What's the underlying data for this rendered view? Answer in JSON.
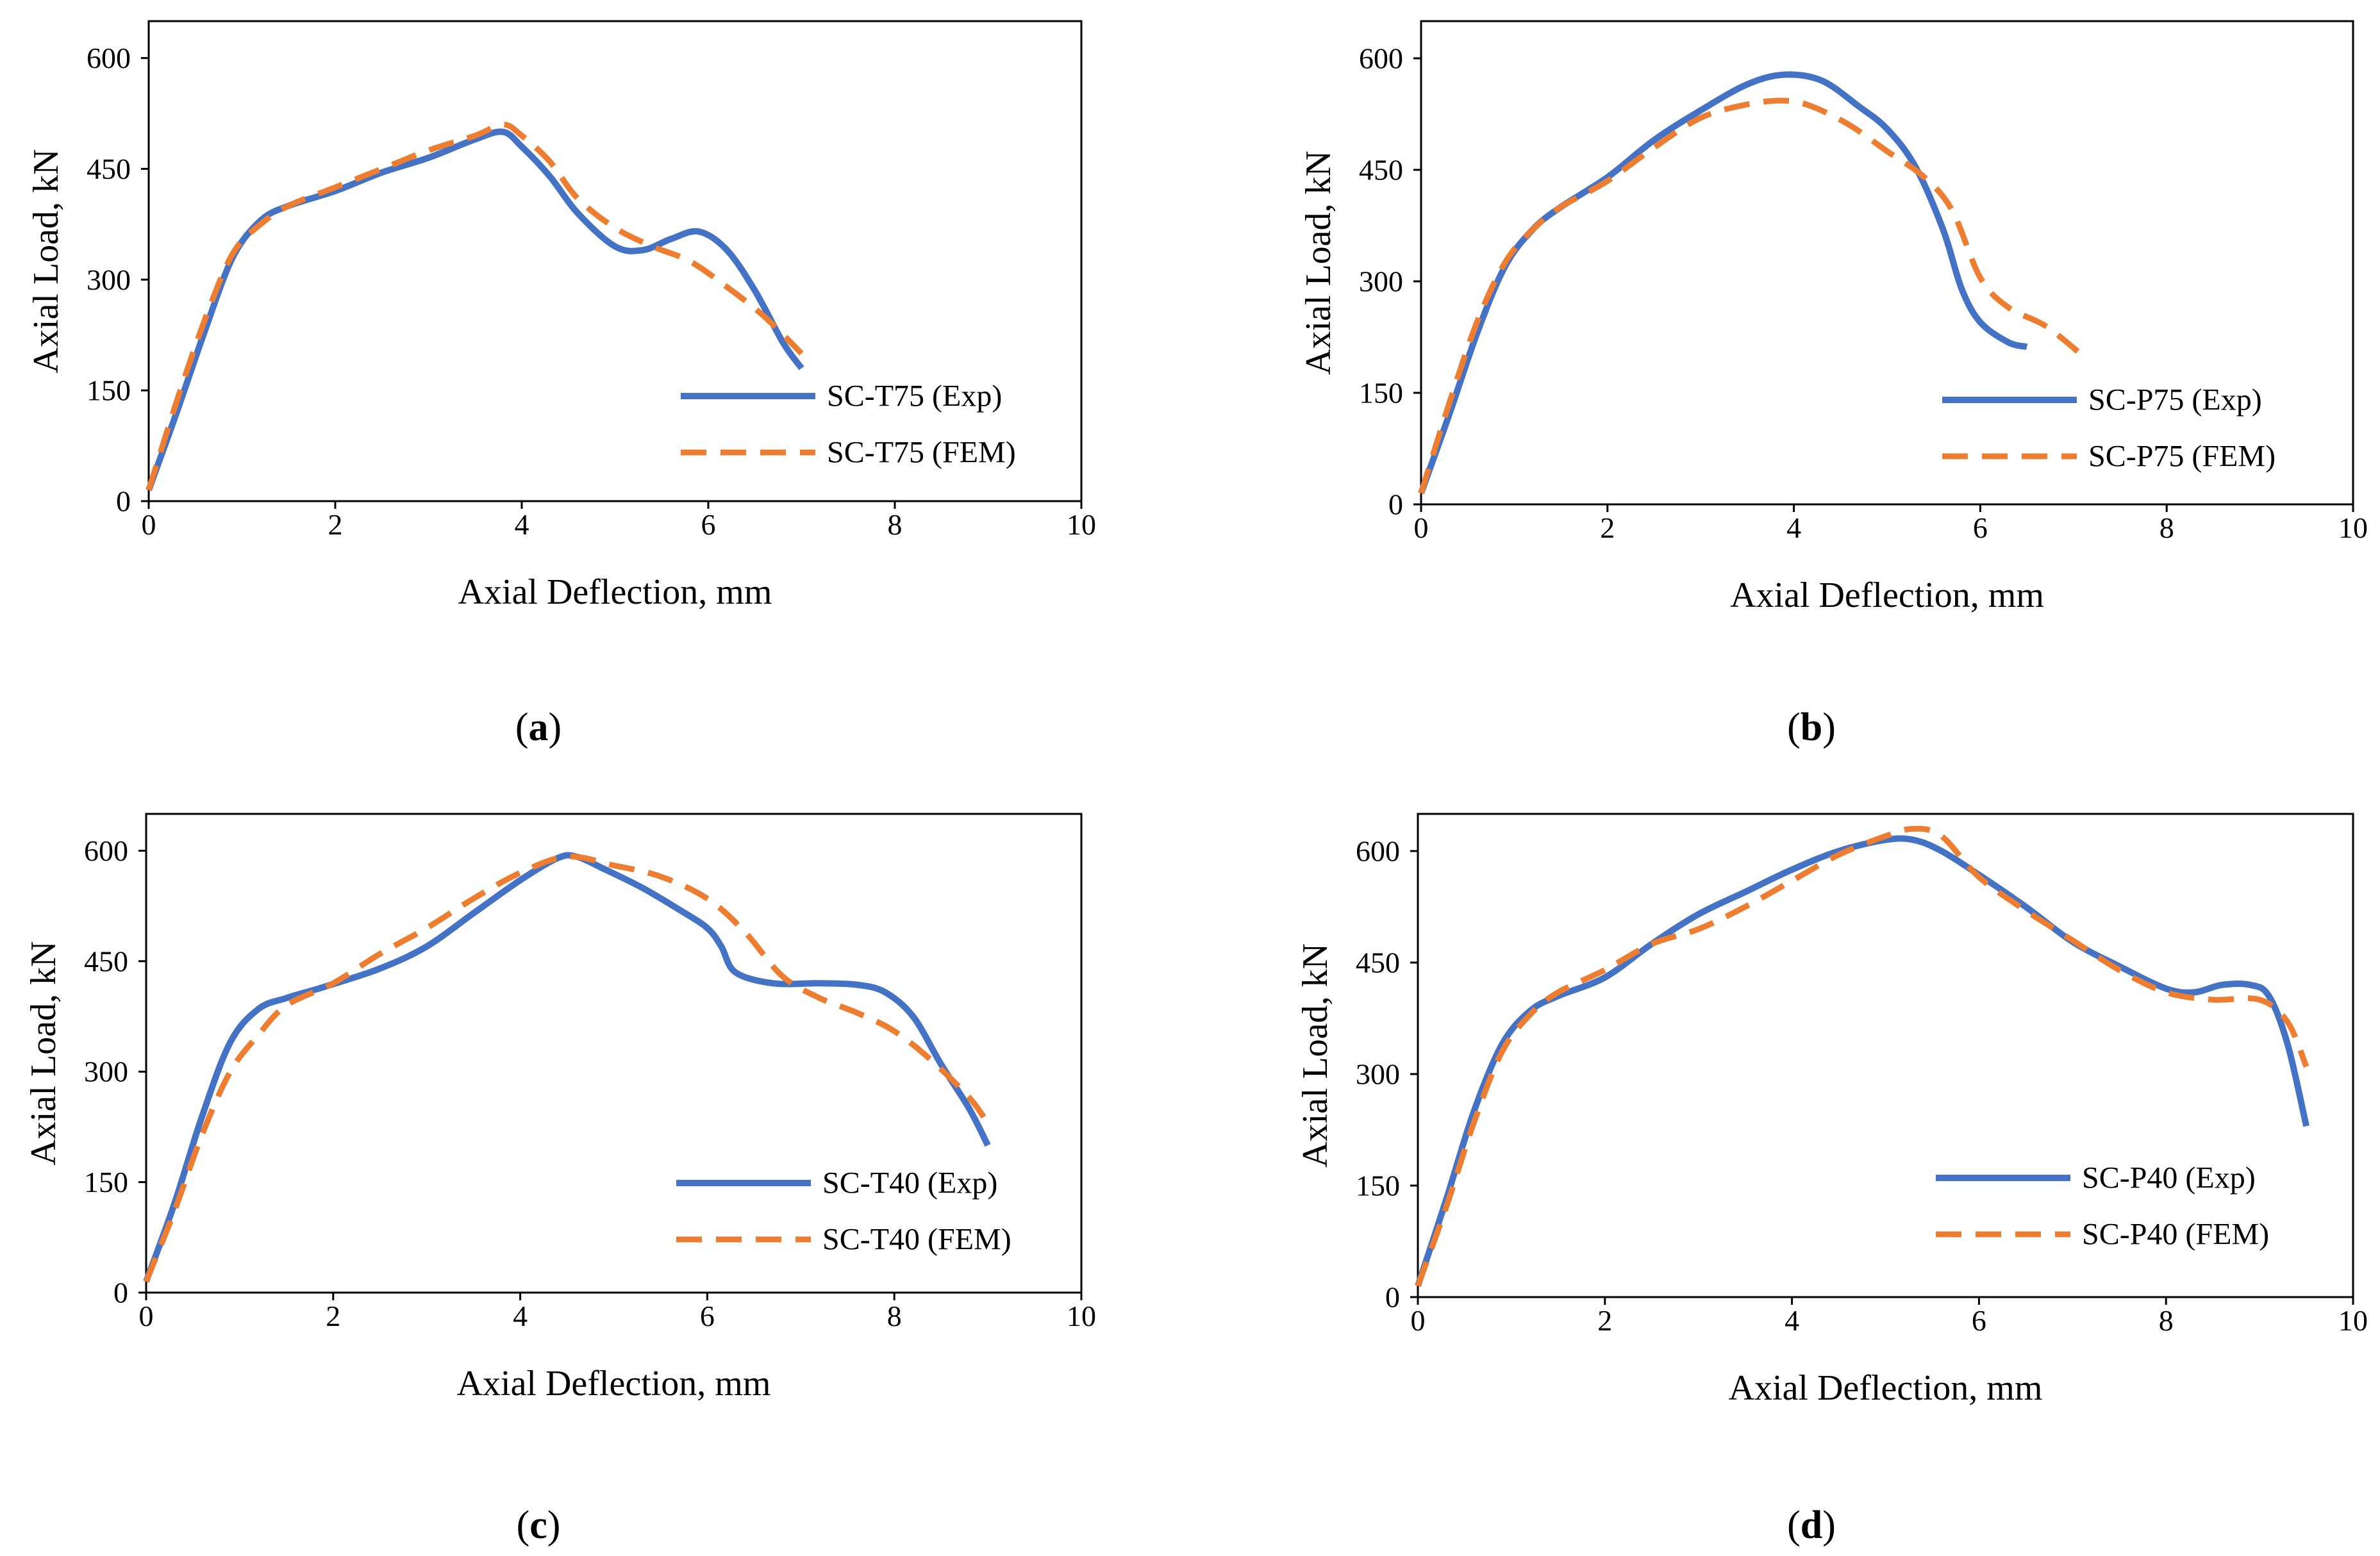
{
  "colors": {
    "exp": "#4472C4",
    "fem": "#ED7D31",
    "axis": "#000000"
  },
  "chart_data": [
    {
      "type": "line",
      "panel_label": "a",
      "xlabel": "Axial Deflection, mm",
      "ylabel": "Axial Load, kN",
      "xlim": [
        0,
        10
      ],
      "ylim": [
        0,
        650
      ],
      "xticks": [
        0,
        2,
        4,
        6,
        8,
        10
      ],
      "yticks": [
        0,
        150,
        300,
        450,
        600
      ],
      "grid": false,
      "legend_position": "right",
      "series": [
        {
          "name": "SC-T75 (Exp)",
          "style": "solid",
          "points": [
            [
              0,
              15
            ],
            [
              0.3,
              120
            ],
            [
              0.6,
              230
            ],
            [
              0.9,
              330
            ],
            [
              1.2,
              380
            ],
            [
              1.5,
              400
            ],
            [
              2.0,
              420
            ],
            [
              2.5,
              445
            ],
            [
              3.0,
              465
            ],
            [
              3.5,
              490
            ],
            [
              3.8,
              500
            ],
            [
              4.0,
              480
            ],
            [
              4.3,
              440
            ],
            [
              4.6,
              390
            ],
            [
              5.0,
              345
            ],
            [
              5.3,
              340
            ],
            [
              5.6,
              355
            ],
            [
              5.9,
              365
            ],
            [
              6.2,
              340
            ],
            [
              6.5,
              285
            ],
            [
              6.8,
              215
            ],
            [
              7.0,
              180
            ]
          ]
        },
        {
          "name": "SC-T75 (FEM)",
          "style": "dashed",
          "points": [
            [
              0,
              15
            ],
            [
              0.3,
              135
            ],
            [
              0.6,
              245
            ],
            [
              0.9,
              335
            ],
            [
              1.2,
              375
            ],
            [
              1.5,
              400
            ],
            [
              2.0,
              425
            ],
            [
              2.5,
              450
            ],
            [
              3.0,
              475
            ],
            [
              3.5,
              495
            ],
            [
              3.8,
              510
            ],
            [
              4.0,
              495
            ],
            [
              4.3,
              460
            ],
            [
              4.6,
              410
            ],
            [
              5.0,
              370
            ],
            [
              5.4,
              345
            ],
            [
              5.8,
              325
            ],
            [
              6.2,
              290
            ],
            [
              6.6,
              250
            ],
            [
              7.0,
              200
            ]
          ]
        }
      ]
    },
    {
      "type": "line",
      "panel_label": "b",
      "xlabel": "Axial Deflection, mm",
      "ylabel": "Axial Load, kN",
      "xlim": [
        0,
        10
      ],
      "ylim": [
        0,
        650
      ],
      "xticks": [
        0,
        2,
        4,
        6,
        8,
        10
      ],
      "yticks": [
        0,
        150,
        300,
        450,
        600
      ],
      "grid": false,
      "legend_position": "right",
      "series": [
        {
          "name": "SC-P75 (Exp)",
          "style": "solid",
          "points": [
            [
              0,
              15
            ],
            [
              0.3,
              120
            ],
            [
              0.6,
              230
            ],
            [
              0.9,
              320
            ],
            [
              1.2,
              370
            ],
            [
              1.5,
              400
            ],
            [
              2.0,
              440
            ],
            [
              2.5,
              490
            ],
            [
              3.0,
              530
            ],
            [
              3.5,
              565
            ],
            [
              3.9,
              578
            ],
            [
              4.3,
              570
            ],
            [
              4.7,
              535
            ],
            [
              5.0,
              505
            ],
            [
              5.3,
              455
            ],
            [
              5.6,
              370
            ],
            [
              5.8,
              290
            ],
            [
              6.0,
              245
            ],
            [
              6.3,
              218
            ],
            [
              6.5,
              212
            ]
          ]
        },
        {
          "name": "SC-P75 (FEM)",
          "style": "dashed",
          "points": [
            [
              0,
              15
            ],
            [
              0.3,
              135
            ],
            [
              0.6,
              245
            ],
            [
              0.9,
              325
            ],
            [
              1.2,
              370
            ],
            [
              1.5,
              400
            ],
            [
              2.0,
              435
            ],
            [
              2.5,
              480
            ],
            [
              3.0,
              520
            ],
            [
              3.5,
              538
            ],
            [
              3.9,
              543
            ],
            [
              4.2,
              535
            ],
            [
              4.6,
              510
            ],
            [
              5.0,
              475
            ],
            [
              5.4,
              440
            ],
            [
              5.7,
              395
            ],
            [
              6.0,
              305
            ],
            [
              6.3,
              265
            ],
            [
              6.7,
              240
            ],
            [
              7.1,
              200
            ]
          ]
        }
      ]
    },
    {
      "type": "line",
      "panel_label": "c",
      "xlabel": "Axial Deflection, mm",
      "ylabel": "Axial Load, kN",
      "xlim": [
        0,
        10
      ],
      "ylim": [
        0,
        650
      ],
      "xticks": [
        0,
        2,
        4,
        6,
        8,
        10
      ],
      "yticks": [
        0,
        150,
        300,
        450,
        600
      ],
      "grid": false,
      "legend_position": "right",
      "series": [
        {
          "name": "SC-T40 (Exp)",
          "style": "solid",
          "points": [
            [
              0,
              15
            ],
            [
              0.3,
              120
            ],
            [
              0.6,
              240
            ],
            [
              0.9,
              340
            ],
            [
              1.2,
              385
            ],
            [
              1.5,
              400
            ],
            [
              1.9,
              415
            ],
            [
              2.5,
              440
            ],
            [
              3.0,
              470
            ],
            [
              3.5,
              515
            ],
            [
              4.0,
              560
            ],
            [
              4.4,
              590
            ],
            [
              4.6,
              592
            ],
            [
              4.9,
              575
            ],
            [
              5.3,
              550
            ],
            [
              5.7,
              520
            ],
            [
              6.0,
              495
            ],
            [
              6.15,
              470
            ],
            [
              6.3,
              435
            ],
            [
              6.7,
              420
            ],
            [
              7.2,
              420
            ],
            [
              7.6,
              418
            ],
            [
              7.9,
              408
            ],
            [
              8.2,
              375
            ],
            [
              8.5,
              310
            ],
            [
              8.8,
              250
            ],
            [
              9.0,
              200
            ]
          ]
        },
        {
          "name": "SC-T40 (FEM)",
          "style": "dashed",
          "points": [
            [
              0,
              15
            ],
            [
              0.3,
              110
            ],
            [
              0.6,
              215
            ],
            [
              0.9,
              300
            ],
            [
              1.2,
              350
            ],
            [
              1.5,
              390
            ],
            [
              2.0,
              420
            ],
            [
              2.5,
              460
            ],
            [
              3.0,
              495
            ],
            [
              3.5,
              535
            ],
            [
              4.0,
              570
            ],
            [
              4.5,
              592
            ],
            [
              5.0,
              580
            ],
            [
              5.5,
              565
            ],
            [
              6.0,
              535
            ],
            [
              6.4,
              490
            ],
            [
              6.8,
              430
            ],
            [
              7.2,
              400
            ],
            [
              7.6,
              380
            ],
            [
              8.0,
              355
            ],
            [
              8.4,
              315
            ],
            [
              8.8,
              265
            ],
            [
              9.0,
              230
            ]
          ]
        }
      ]
    },
    {
      "type": "line",
      "panel_label": "d",
      "xlabel": "Axial Deflection, mm",
      "ylabel": "Axial Load, kN",
      "xlim": [
        0,
        10
      ],
      "ylim": [
        0,
        650
      ],
      "xticks": [
        0,
        2,
        4,
        6,
        8,
        10
      ],
      "yticks": [
        0,
        150,
        300,
        450,
        600
      ],
      "grid": false,
      "legend_position": "right",
      "series": [
        {
          "name": "SC-P40 (Exp)",
          "style": "solid",
          "points": [
            [
              0,
              15
            ],
            [
              0.3,
              130
            ],
            [
              0.6,
              250
            ],
            [
              0.9,
              340
            ],
            [
              1.2,
              385
            ],
            [
              1.5,
              405
            ],
            [
              2.0,
              430
            ],
            [
              2.5,
              475
            ],
            [
              3.0,
              515
            ],
            [
              3.5,
              545
            ],
            [
              4.0,
              575
            ],
            [
              4.5,
              600
            ],
            [
              5.0,
              615
            ],
            [
              5.3,
              615
            ],
            [
              5.6,
              600
            ],
            [
              6.0,
              568
            ],
            [
              6.5,
              525
            ],
            [
              7.0,
              478
            ],
            [
              7.5,
              445
            ],
            [
              8.0,
              415
            ],
            [
              8.3,
              410
            ],
            [
              8.6,
              420
            ],
            [
              8.9,
              420
            ],
            [
              9.1,
              405
            ],
            [
              9.3,
              340
            ],
            [
              9.5,
              230
            ]
          ]
        },
        {
          "name": "SC-P40 (FEM)",
          "style": "dashed",
          "points": [
            [
              0,
              15
            ],
            [
              0.3,
              120
            ],
            [
              0.6,
              235
            ],
            [
              0.9,
              330
            ],
            [
              1.2,
              380
            ],
            [
              1.5,
              410
            ],
            [
              2.0,
              440
            ],
            [
              2.5,
              475
            ],
            [
              3.0,
              495
            ],
            [
              3.5,
              525
            ],
            [
              4.0,
              560
            ],
            [
              4.5,
              595
            ],
            [
              5.0,
              620
            ],
            [
              5.3,
              630
            ],
            [
              5.6,
              620
            ],
            [
              6.0,
              565
            ],
            [
              6.5,
              520
            ],
            [
              7.0,
              480
            ],
            [
              7.5,
              440
            ],
            [
              8.0,
              410
            ],
            [
              8.5,
              400
            ],
            [
              9.0,
              400
            ],
            [
              9.3,
              370
            ],
            [
              9.5,
              310
            ]
          ]
        }
      ]
    }
  ]
}
